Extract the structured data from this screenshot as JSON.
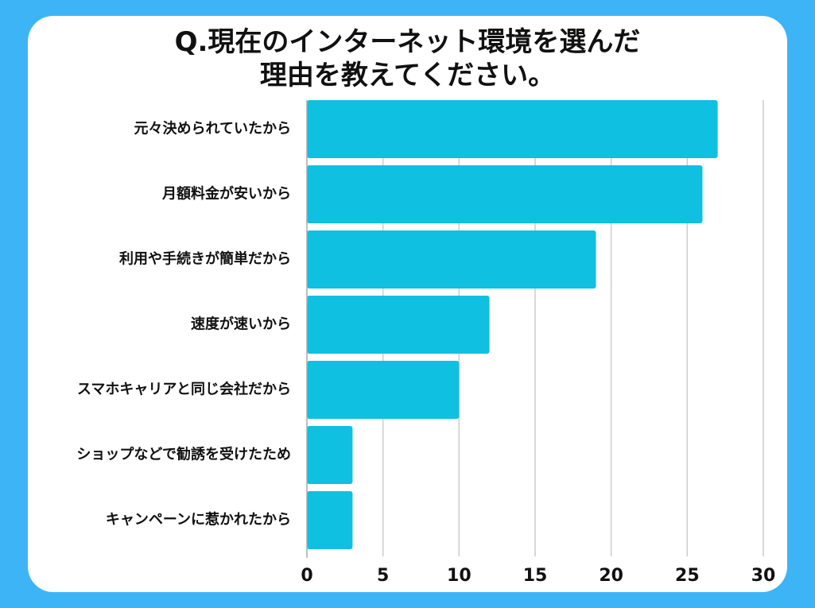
{
  "title_lines": [
    "Q.現在のインターネット環境を選んだ",
    "理由を教えてください。"
  ],
  "chart_data": {
    "type": "bar",
    "orientation": "horizontal",
    "categories": [
      "元々決められていたから",
      "月額料金が安いから",
      "利用や手続きが簡単だから",
      "速度が速いから",
      "スマホキャリアと同じ会社だから",
      "ショップなどで勧誘を受けたため",
      "キャンペーンに惹かれたから"
    ],
    "values": [
      27,
      26,
      19,
      12,
      10,
      3,
      3
    ],
    "xlim": [
      0,
      30
    ],
    "xticks": [
      0,
      5,
      10,
      15,
      20,
      25,
      30
    ],
    "grid": true,
    "bar_color": "#0fc0e0",
    "grid_color": "#cccccc"
  }
}
